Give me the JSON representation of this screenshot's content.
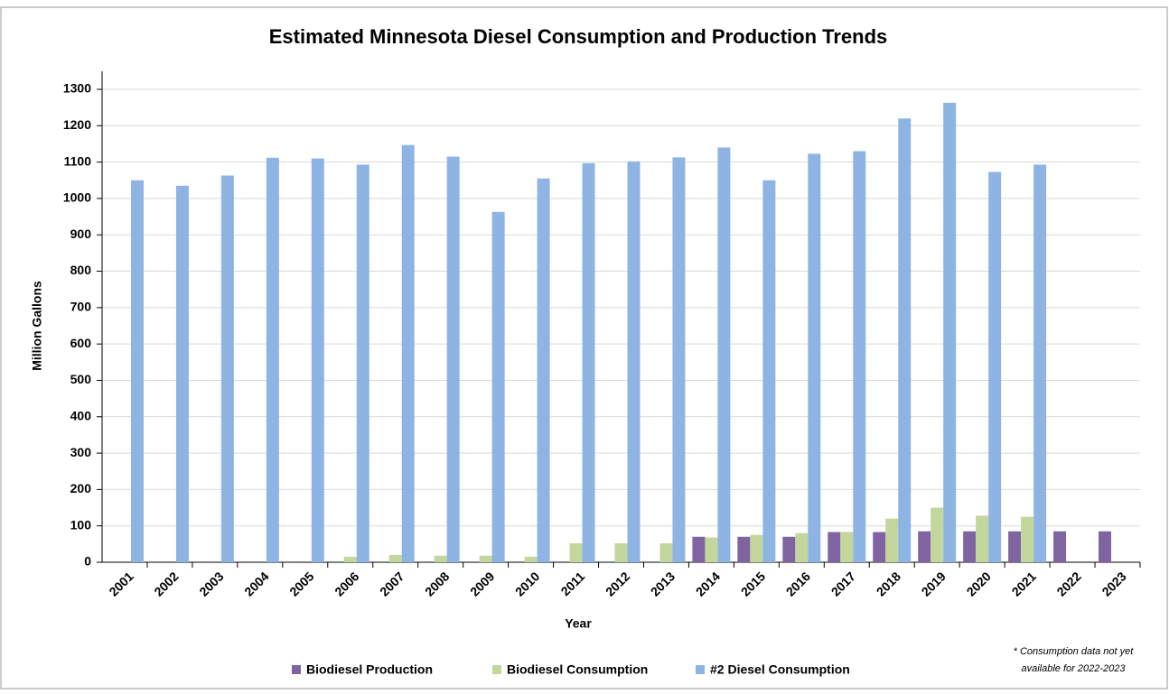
{
  "chart_data": {
    "type": "bar",
    "title": "Estimated Minnesota Diesel Consumption and Production Trends",
    "x_label": "Year",
    "y_label": "Million Gallons",
    "categories": [
      "2001",
      "2002",
      "2003",
      "2004",
      "2005",
      "2006",
      "2007",
      "2008",
      "2009",
      "2010",
      "2011",
      "2012",
      "2013",
      "2014",
      "2015",
      "2016",
      "2017",
      "2018",
      "2019",
      "2020",
      "2021",
      "2022",
      "2023"
    ],
    "series": [
      {
        "name": "Biodiesel Production",
        "color": "#8064a2",
        "values": [
          null,
          null,
          null,
          null,
          null,
          null,
          null,
          null,
          null,
          null,
          null,
          null,
          null,
          70,
          70,
          70,
          83,
          83,
          85,
          85,
          85,
          85,
          85
        ]
      },
      {
        "name": "Biodiesel Consumption",
        "color": "#c3d69b",
        "values": [
          0,
          0,
          0,
          0,
          0,
          15,
          20,
          18,
          18,
          15,
          52,
          52,
          52,
          68,
          75,
          80,
          83,
          120,
          150,
          128,
          125,
          null,
          null
        ]
      },
      {
        "name": "#2 Diesel Consumption",
        "color": "#8eb4e3",
        "values": [
          1050,
          1035,
          1063,
          1112,
          1110,
          1093,
          1147,
          1115,
          963,
          1055,
          1097,
          1102,
          1113,
          1140,
          1050,
          1123,
          1130,
          1220,
          1263,
          1073,
          1093,
          null,
          null
        ]
      }
    ],
    "ylim": [
      0,
      1300
    ],
    "yticks": [
      0,
      100,
      200,
      300,
      400,
      500,
      600,
      700,
      800,
      900,
      1000,
      1100,
      1200,
      1300
    ],
    "grid": true,
    "legend": "bottom",
    "note": [
      "* Consumption data not yet",
      "available for 2022-2023"
    ]
  }
}
